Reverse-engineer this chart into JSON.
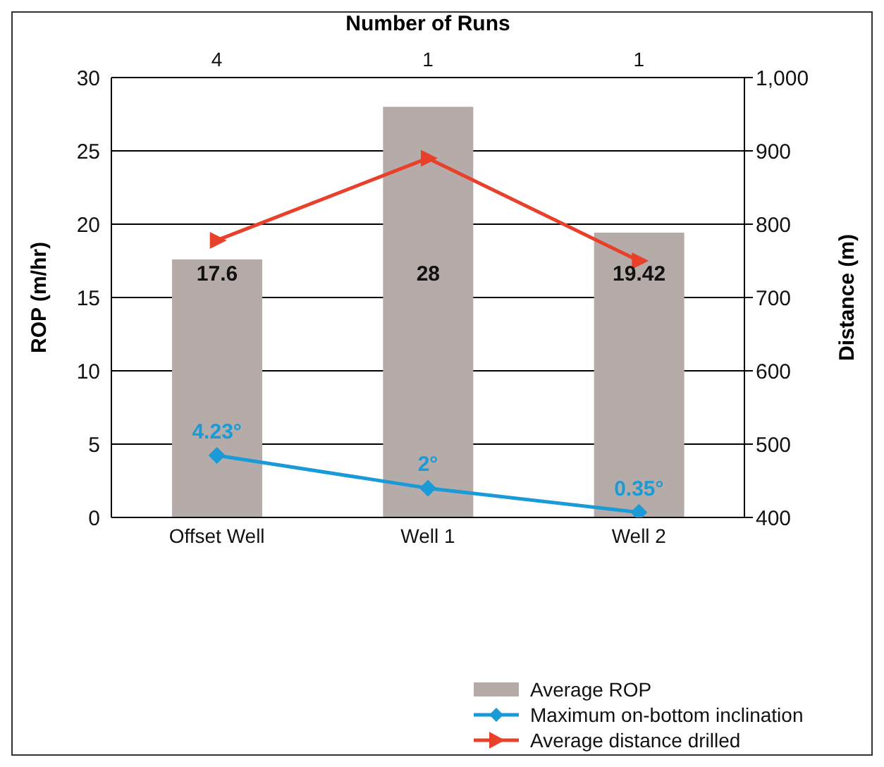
{
  "chart_data": {
    "type": "bar",
    "x2label": "Number of Runs",
    "ylabel": "ROP (m/hr)",
    "y2label": "Distance (m)",
    "categories": [
      "Offset Well",
      "Well 1",
      "Well 2"
    ],
    "annotations": [
      "4",
      "1",
      "1"
    ],
    "series": [
      {
        "name": "Average ROP",
        "color": "#b5aca9",
        "values": [
          17.6,
          28,
          19.42
        ],
        "value_labels": [
          "17.6",
          "28",
          "19.42"
        ]
      },
      {
        "name": "Maximum on-bottom inclination",
        "type": "line",
        "color": "#1a9ad6",
        "marker": "diamond",
        "values": [
          4.23,
          2,
          0.35
        ],
        "value_labels": [
          "4.23°",
          "2°",
          "0.35°"
        ]
      },
      {
        "name": "Average distance drilled",
        "type": "line",
        "axis": "y2",
        "color": "#e8402a",
        "marker": "triangle",
        "values": [
          778,
          890,
          750
        ]
      }
    ],
    "ylim": [
      0,
      30
    ],
    "yticks": [
      0,
      5,
      10,
      15,
      20,
      25,
      30
    ],
    "y2lim": [
      400,
      1000
    ],
    "y2ticks": [
      400,
      500,
      600,
      700,
      800,
      900,
      {
        "value": 1000,
        "label": "1,000"
      }
    ],
    "grid": "y",
    "legend": "bottom right"
  }
}
